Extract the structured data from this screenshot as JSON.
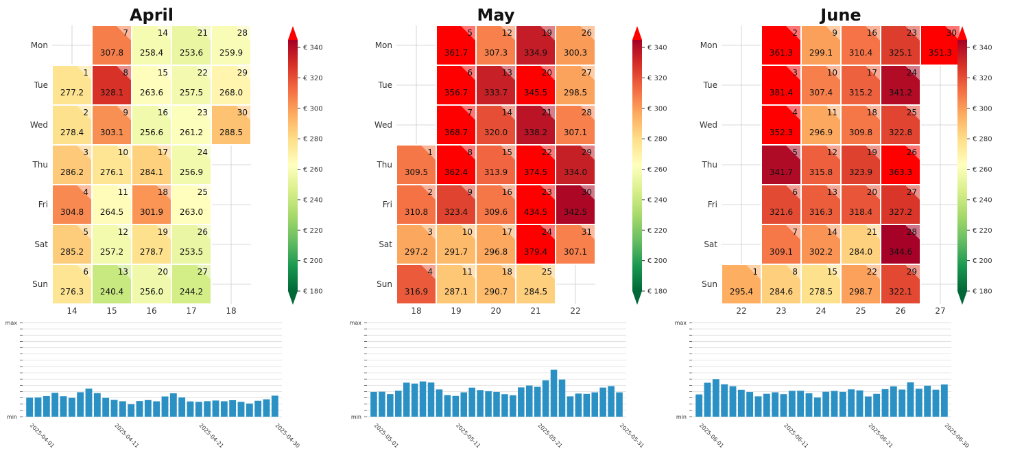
{
  "chart_data": [
    {
      "type": "heatmap",
      "title": "April",
      "day_labels": [
        "Mon",
        "Tue",
        "Wed",
        "Thu",
        "Fri",
        "Sat",
        "Sun"
      ],
      "week_labels": [
        "14",
        "15",
        "16",
        "17",
        "18"
      ],
      "first_weekday": 1,
      "values": [
        277.2,
        278.4,
        286.2,
        304.8,
        285.2,
        276.3,
        307.8,
        328.1,
        303.1,
        276.1,
        264.5,
        257.2,
        240.4,
        258.4,
        263.6,
        256.6,
        284.1,
        301.9,
        278.7,
        256.0,
        253.6,
        257.5,
        261.2,
        256.9,
        263.0,
        253.5,
        244.2,
        259.9,
        268.0,
        288.5
      ],
      "colorbar": {
        "min": 180,
        "max": 345,
        "ticks": [
          180,
          200,
          220,
          240,
          260,
          280,
          300,
          320,
          340
        ],
        "prefix": "€ "
      },
      "bar_ylabels": [
        "max",
        "min"
      ],
      "bar_dates": [
        "2025-04-01",
        "2025-04-11",
        "2025-04-21",
        "2025-04-30"
      ]
    },
    {
      "type": "heatmap",
      "title": "May",
      "day_labels": [
        "Mon",
        "Tue",
        "Wed",
        "Thu",
        "Fri",
        "Sat",
        "Sun"
      ],
      "week_labels": [
        "18",
        "19",
        "20",
        "21",
        "22"
      ],
      "first_weekday": 3,
      "values": [
        309.5,
        310.8,
        297.2,
        316.9,
        361.7,
        356.7,
        368.7,
        362.4,
        323.4,
        291.7,
        287.1,
        307.3,
        333.7,
        320.0,
        313.9,
        309.6,
        296.8,
        290.7,
        334.9,
        345.5,
        338.2,
        374.5,
        434.5,
        379.4,
        284.5,
        300.3,
        298.5,
        307.1,
        334.0,
        342.5,
        307.1
      ],
      "colorbar": {
        "min": 180,
        "max": 345,
        "ticks": [
          180,
          200,
          220,
          240,
          260,
          280,
          300,
          320,
          340
        ],
        "prefix": "€ "
      },
      "bar_ylabels": [
        "max",
        "min"
      ],
      "bar_dates": [
        "2025-05-01",
        "2025-05-11",
        "2025-05-21",
        "2025-05-31"
      ]
    },
    {
      "type": "heatmap",
      "title": "June",
      "day_labels": [
        "Mon",
        "Tue",
        "Wed",
        "Thu",
        "Fri",
        "Sat",
        "Sun"
      ],
      "week_labels": [
        "22",
        "23",
        "24",
        "25",
        "26",
        "27"
      ],
      "first_weekday": 6,
      "values": [
        295.4,
        361.3,
        381.4,
        352.3,
        341.7,
        321.6,
        309.1,
        284.6,
        299.1,
        307.4,
        296.9,
        315.8,
        316.3,
        302.2,
        278.5,
        310.4,
        315.2,
        309.8,
        323.9,
        318.4,
        284.0,
        298.7,
        325.1,
        341.2,
        322.8,
        363.3,
        327.2,
        344.6,
        322.1,
        351.3
      ],
      "colorbar": {
        "min": 180,
        "max": 345,
        "ticks": [
          180,
          200,
          220,
          240,
          260,
          280,
          300,
          320,
          340
        ],
        "prefix": "€ "
      },
      "bar_ylabels": [
        "max",
        "min"
      ],
      "bar_dates": [
        "2025-06-01",
        "2025-06-11",
        "2025-06-21",
        "2025-06-30"
      ]
    }
  ],
  "colors": {
    "bar": "#2b91c4",
    "scale": [
      "#006837",
      "#1a9850",
      "#66bd63",
      "#a6d96a",
      "#d9ef8b",
      "#ffffbf",
      "#fee08b",
      "#fdae61",
      "#f46d43",
      "#d73027",
      "#a50026"
    ],
    "over": "#ff0000",
    "grid": "#cccccc"
  }
}
